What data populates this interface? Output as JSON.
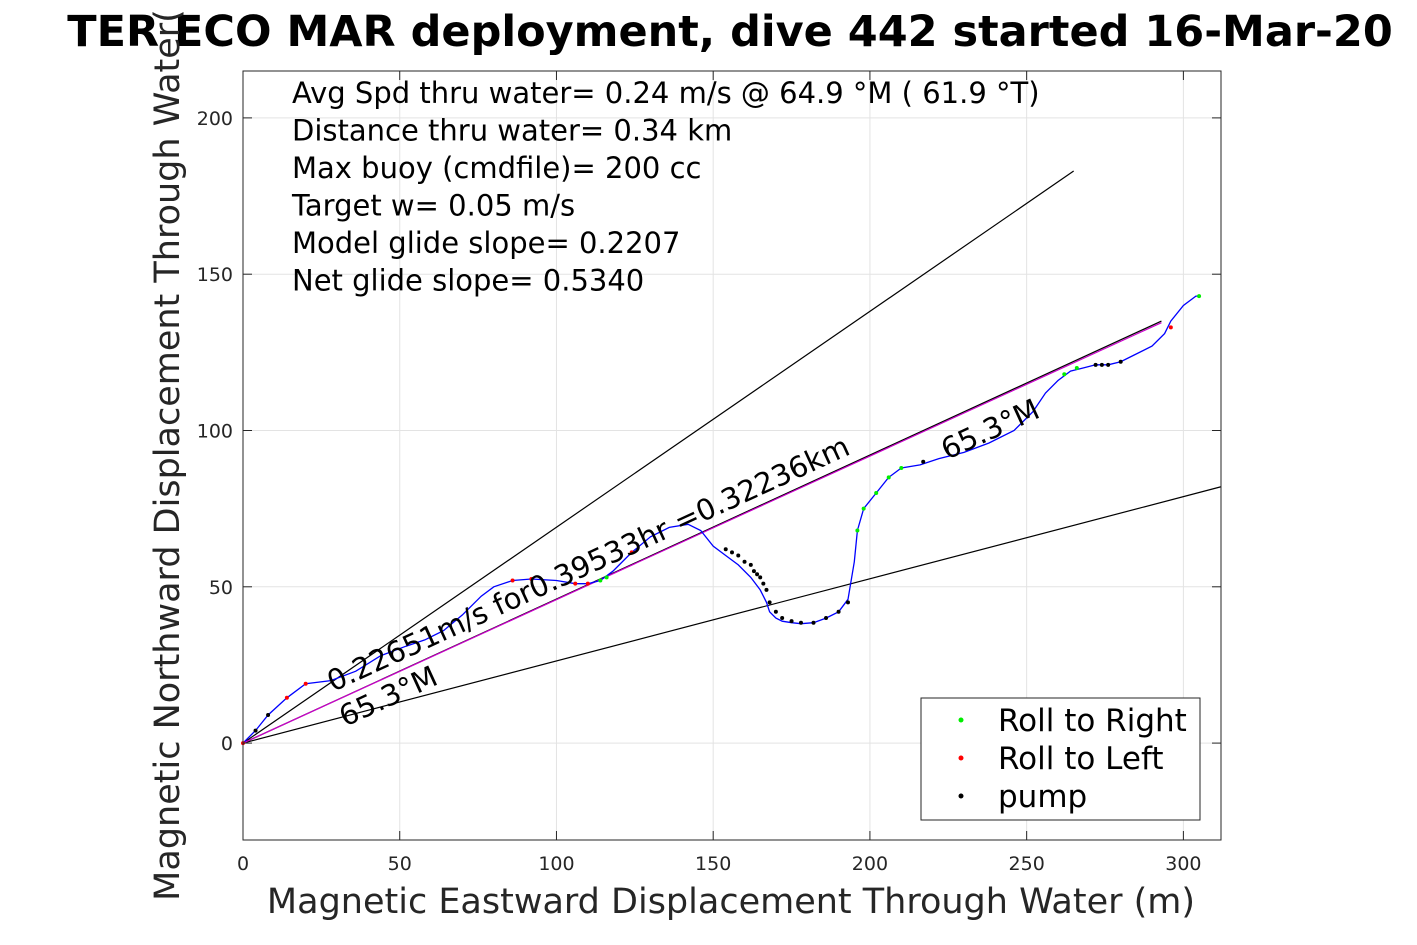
{
  "chart_data": {
    "type": "line",
    "title": "TER ECO MAR deployment, dive 442 started 16-Mar-20",
    "xlabel": "Magnetic Eastward Displacement Through Water (m)",
    "ylabel": "Magnetic Northward Displacement Through Water(",
    "xlim": [
      0,
      312
    ],
    "ylim": [
      -31,
      215
    ],
    "xticks": [
      0,
      50,
      100,
      150,
      200,
      250,
      300
    ],
    "yticks": [
      0,
      50,
      100,
      150,
      200
    ],
    "xtick_labels": [
      "0",
      "50",
      "100",
      "150",
      "200",
      "250",
      "300"
    ],
    "ytick_labels": [
      "0",
      "50",
      "100",
      "150",
      "200"
    ],
    "grid": true,
    "legend_position": "bottom-right",
    "info_lines": [
      "Avg Spd thru water=  0.24 m/s @  64.9 °M ( 61.9 °T)",
      "Distance thru water=  0.34 km",
      "Max buoy (cmdfile)= 200 cc",
      "Target w= 0.05 m/s",
      "Model glide slope= 0.2207",
      "Net glide slope= 0.5340"
    ],
    "annotations": {
      "along_track": "0.22651m/s for0.39533hr =0.32236km",
      "heading_lower": "65.3°M",
      "heading_upper": "65.3°M"
    },
    "reference_lines": [
      {
        "name": "upper-envelope",
        "color": "#000000",
        "x": [
          0,
          265
        ],
        "y": [
          0,
          183
        ]
      },
      {
        "name": "lower-envelope",
        "color": "#000000",
        "x": [
          0,
          312
        ],
        "y": [
          0,
          82
        ]
      },
      {
        "name": "heading-line",
        "color": "#000000",
        "x": [
          0,
          293
        ],
        "y": [
          0,
          135
        ]
      },
      {
        "name": "heading-line-magenta",
        "color": "#cc00cc",
        "x": [
          0,
          293
        ],
        "y": [
          0,
          134.5
        ]
      }
    ],
    "track": {
      "color": "#0000ff",
      "x": [
        0,
        4,
        8,
        14,
        20,
        28,
        36,
        44,
        52,
        58,
        64,
        70,
        76,
        80,
        86,
        92,
        100,
        106,
        110,
        114,
        118,
        124,
        130,
        136,
        142,
        146,
        150,
        154,
        158,
        162,
        165,
        167,
        168,
        170,
        172,
        175,
        178,
        182,
        186,
        190,
        193,
        195,
        196,
        198,
        202,
        206,
        210,
        216,
        222,
        230,
        238,
        246,
        252,
        256,
        260,
        264,
        268,
        272,
        276,
        280,
        284,
        290,
        294,
        296,
        300,
        304,
        305
      ],
      "y": [
        0,
        4,
        9,
        14.5,
        19,
        20,
        23,
        28,
        31,
        33,
        36,
        41,
        47,
        50,
        52,
        52.5,
        52,
        51,
        51,
        52,
        55,
        61,
        66,
        69,
        70,
        68,
        63,
        60,
        57,
        53,
        49,
        45,
        42,
        40,
        39,
        38.5,
        38.2,
        38.5,
        40,
        42,
        46,
        58,
        68,
        75,
        80,
        85,
        88,
        89,
        91,
        93,
        96,
        100,
        106,
        112,
        116,
        119,
        120,
        121,
        121,
        122,
        124,
        127,
        131,
        135,
        140,
        143,
        143
      ]
    },
    "series": [
      {
        "name": "Roll to Right",
        "color": "#00ee00",
        "marker": "dot",
        "x": [
          114,
          116,
          196,
          198,
          202,
          206,
          210,
          262,
          266,
          305
        ],
        "y": [
          52,
          53,
          68,
          75,
          80,
          85,
          88,
          118,
          120,
          143
        ]
      },
      {
        "name": "Roll to Left",
        "color": "#ff0000",
        "marker": "dot",
        "x": [
          0,
          14,
          20,
          86,
          92,
          106,
          110,
          124,
          296
        ],
        "y": [
          0,
          14.5,
          19,
          52,
          52.5,
          51,
          51,
          61,
          133
        ]
      },
      {
        "name": "pump",
        "color": "#000000",
        "marker": "dot",
        "x": [
          4,
          8,
          154,
          156,
          158,
          160,
          162,
          163,
          164,
          165,
          166,
          167,
          168,
          170,
          172,
          175,
          178,
          182,
          186,
          190,
          193,
          217,
          272,
          274,
          276,
          280
        ],
        "y": [
          4,
          9,
          62,
          61,
          60,
          58,
          57,
          55,
          54,
          53,
          51,
          49,
          45,
          42,
          40,
          39,
          38.5,
          38.5,
          40,
          42,
          45,
          90,
          121,
          121,
          121,
          122
        ]
      }
    ],
    "legend": [
      {
        "name": "Roll to Right",
        "color": "#00ee00"
      },
      {
        "name": "Roll to Left",
        "color": "#ff0000"
      },
      {
        "name": "pump",
        "color": "#000000"
      }
    ]
  }
}
